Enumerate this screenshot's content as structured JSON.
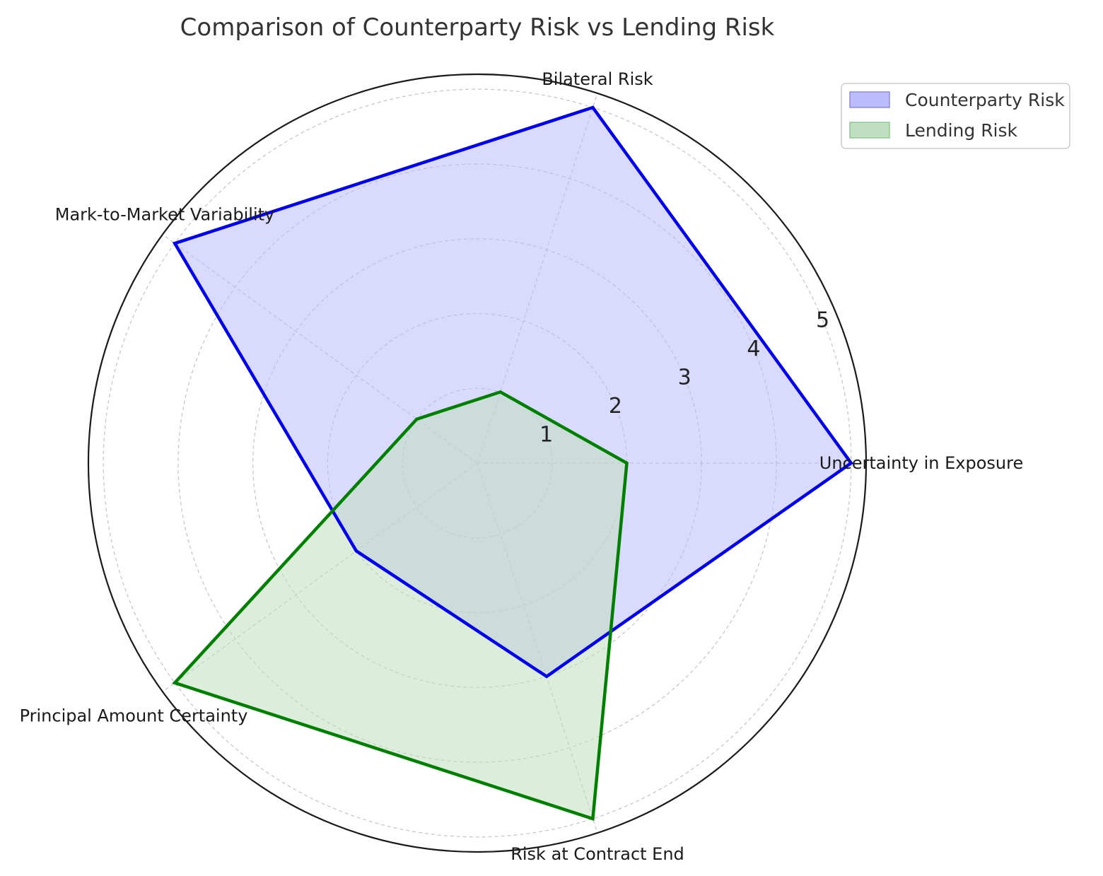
{
  "chart_data": {
    "type": "radar",
    "title": "Comparison of Counterparty Risk vs Lending Risk",
    "categories": [
      "Uncertainty in Exposure",
      "Bilateral Risk",
      "Mark-to-Market Variability",
      "Principal Amount Certainty",
      "Risk at Contract End"
    ],
    "radial_ticks": [
      "1",
      "2",
      "3",
      "4",
      "5"
    ],
    "rlim": [
      0,
      5.2
    ],
    "grid": true,
    "legend_position": "top-right",
    "series": [
      {
        "name": "Counterparty Risk",
        "values": [
          5,
          5,
          5,
          2,
          3
        ],
        "line_color": "#0000ee",
        "fill_color": "#bcbcfc"
      },
      {
        "name": "Lending Risk",
        "values": [
          2,
          1,
          1,
          5,
          5
        ],
        "line_color": "#008000",
        "fill_color": "#c0dec0"
      }
    ]
  }
}
